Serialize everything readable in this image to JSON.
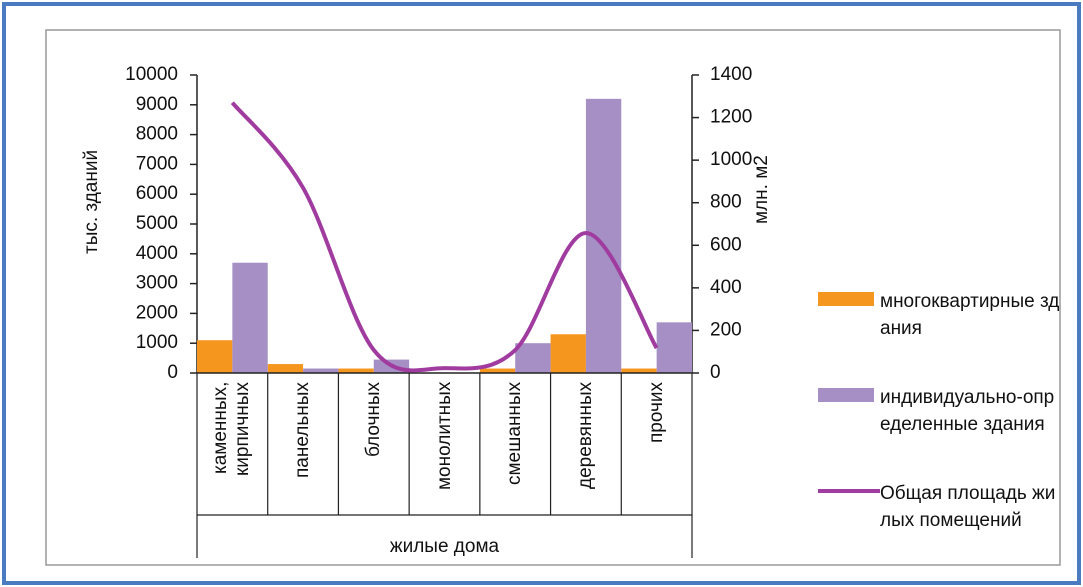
{
  "chart_data": {
    "type": "bar",
    "categories": [
      "каменных, кирпичных",
      "панельных",
      "блочных",
      "монолитных",
      "смешанных",
      "деревянных",
      "прочих"
    ],
    "x_group_label": "жилые дома",
    "y_label": "тыс. зданий",
    "y2_label": "млн. м2",
    "ylim": [
      0,
      10000
    ],
    "yticks": [
      0,
      1000,
      2000,
      3000,
      4000,
      5000,
      6000,
      7000,
      8000,
      9000,
      10000
    ],
    "y2lim": [
      0,
      1400
    ],
    "y2ticks": [
      0,
      200,
      400,
      600,
      800,
      1000,
      1200,
      1400
    ],
    "series": [
      {
        "name": "многоквартирные здания",
        "color": "#f5961e",
        "values": [
          1100,
          300,
          150,
          10,
          150,
          1300,
          150
        ]
      },
      {
        "name": "индивидуально-определенные здания",
        "color": "#a58fc4",
        "values": [
          3700,
          150,
          450,
          0,
          1000,
          9200,
          1700
        ]
      },
      {
        "name": "Общая площадь жилых помещений",
        "color": "#a03c9f",
        "type": "line",
        "axis": "y2",
        "values": [
          1270,
          870,
          108,
          23,
          108,
          658,
          117
        ]
      }
    ]
  }
}
